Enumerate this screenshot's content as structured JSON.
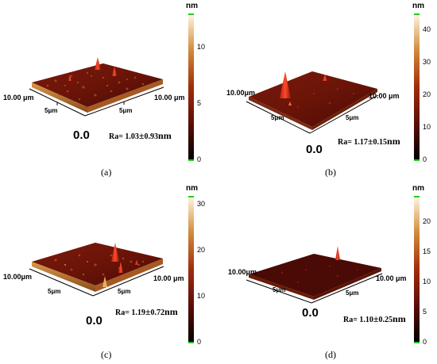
{
  "panels": [
    {
      "id": "a",
      "caption": "(a)",
      "x_size": "10.00 μm",
      "y_size": "10.00 μm",
      "x_mid": "5μm",
      "y_mid": "5μm",
      "origin": "0.0",
      "ra_prefix": "Ra= ",
      "ra_value": "1.03",
      "ra_pm": "±",
      "ra_err": "0.93",
      "ra_unit": "nm",
      "colorbar_unit": "nm",
      "colorbar_ticks": [
        "0",
        "5",
        "10"
      ],
      "colorbar_max": 12.5
    },
    {
      "id": "b",
      "caption": "(b)",
      "x_size": "10.00μm",
      "y_size": "10.00 μm",
      "x_mid": "5μm",
      "y_mid": "5μm",
      "origin": "0.0",
      "ra_prefix": "Ra= ",
      "ra_value": "1.17",
      "ra_pm": "±",
      "ra_err": "0.15",
      "ra_unit": "nm",
      "colorbar_unit": "nm",
      "colorbar_ticks": [
        "0",
        "10",
        "20",
        "30",
        "40"
      ],
      "colorbar_max": 45
    },
    {
      "id": "c",
      "caption": "(c)",
      "x_size": "10.00μm",
      "y_size": "10.00 μm",
      "x_mid": "5μm",
      "y_mid": "5μm",
      "origin": "0.0",
      "ra_prefix": "Ra= ",
      "ra_value": "1.19",
      "ra_pm": "±",
      "ra_err": "0.72",
      "ra_unit": "nm",
      "colorbar_unit": "nm",
      "colorbar_ticks": [
        "0",
        "10",
        "20",
        "30"
      ],
      "colorbar_max": 32
    },
    {
      "id": "d",
      "caption": "(d)",
      "x_size": "10.00μm",
      "y_size": "10.00 μm",
      "x_mid": "5μm",
      "y_mid": "5μm",
      "origin": "0.0",
      "ra_prefix": "Ra= ",
      "ra_value": "1.10",
      "ra_pm": "±",
      "ra_err": "0.25",
      "ra_unit": "nm",
      "colorbar_unit": "nm",
      "colorbar_ticks": [
        "0",
        "5",
        "10",
        "15",
        "20"
      ],
      "colorbar_max": 24
    }
  ],
  "colors": {
    "surface_dark": "#5a0e08",
    "surface_mid": "#9a2a10",
    "surface_light": "#d05520",
    "peak": "#ff3a1a",
    "edge_side": "#c88a3a",
    "colorbar_marker": "#22cc22"
  }
}
